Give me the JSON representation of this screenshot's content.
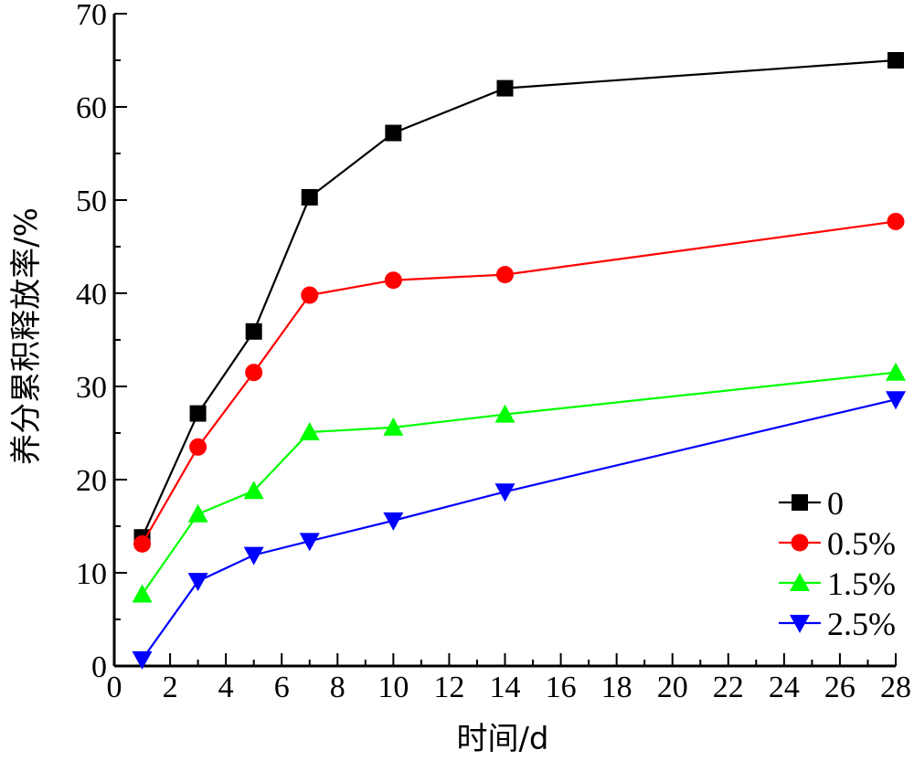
{
  "chart_data": {
    "type": "line",
    "xlabel": "时间/d",
    "ylabel": "养分累积释放率/%",
    "xlim": [
      0,
      28
    ],
    "ylim": [
      0,
      70
    ],
    "xticks": [
      "0",
      "2",
      "4",
      "6",
      "8",
      "10",
      "12",
      "14",
      "16",
      "18",
      "20",
      "22",
      "24",
      "26",
      "28"
    ],
    "yticks": [
      "0",
      "10",
      "20",
      "30",
      "40",
      "50",
      "60",
      "70"
    ],
    "x": [
      1,
      3,
      5,
      7,
      10,
      14,
      28
    ],
    "grid": false,
    "legend_position": "bottom-right",
    "series": [
      {
        "name": "0",
        "marker": "square",
        "color": "#000000",
        "values": [
          13.8,
          27.1,
          35.9,
          50.3,
          57.2,
          62.0,
          65.0
        ]
      },
      {
        "name": "0.5%",
        "marker": "circle",
        "color": "#ff0000",
        "values": [
          13.1,
          23.5,
          31.5,
          39.8,
          41.4,
          42.0,
          47.7
        ]
      },
      {
        "name": "1.5%",
        "marker": "triangle-up",
        "color": "#00ff00",
        "values": [
          7.7,
          16.3,
          18.8,
          25.1,
          25.6,
          27.0,
          31.5
        ]
      },
      {
        "name": "2.5%",
        "marker": "triangle-down",
        "color": "#0000ff",
        "values": [
          0.7,
          9.1,
          11.9,
          13.4,
          15.6,
          18.7,
          28.6
        ]
      }
    ]
  }
}
